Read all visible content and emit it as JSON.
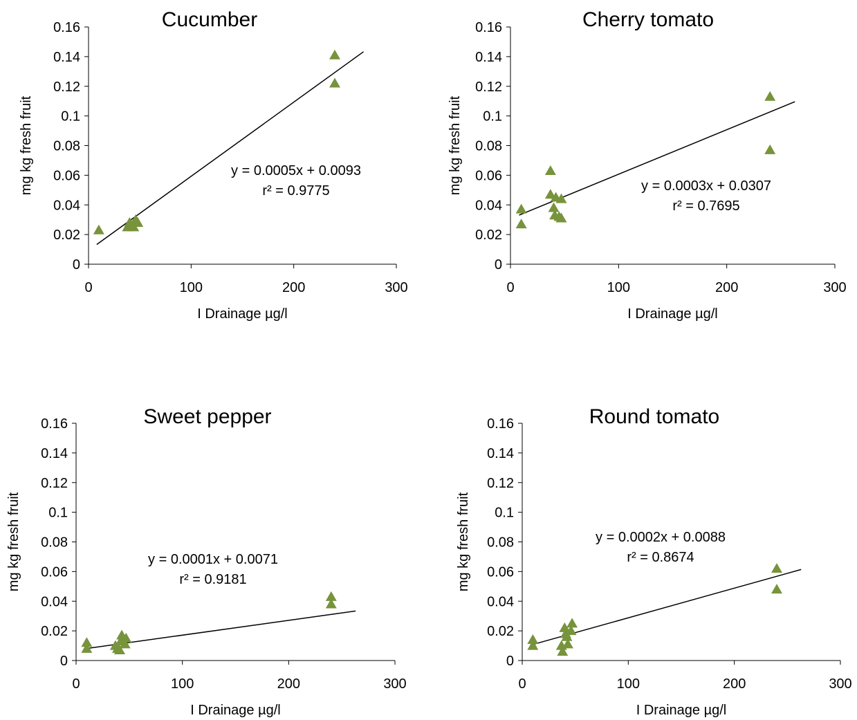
{
  "chart_data": [
    {
      "type": "scatter",
      "title": "Cucumber",
      "xlabel": "I Drainage µg/l",
      "ylabel": "mg kg fresh fruit",
      "xlim": [
        0,
        300
      ],
      "ylim": [
        0,
        0.16
      ],
      "x_ticks": [
        "0",
        "100",
        "200",
        "300"
      ],
      "y_ticks": [
        "0",
        "0.02",
        "0.04",
        "0.06",
        "0.08",
        "0.1",
        "0.12",
        "0.14",
        "0.16"
      ],
      "grid": false,
      "marker_color": "#77933C",
      "points": [
        {
          "x": 10,
          "y": 0.023
        },
        {
          "x": 38,
          "y": 0.025
        },
        {
          "x": 40,
          "y": 0.028
        },
        {
          "x": 42,
          "y": 0.026
        },
        {
          "x": 44,
          "y": 0.025
        },
        {
          "x": 46,
          "y": 0.03
        },
        {
          "x": 48,
          "y": 0.028
        },
        {
          "x": 240,
          "y": 0.141
        },
        {
          "x": 240,
          "y": 0.122
        }
      ],
      "trendline": {
        "x": [
          8,
          268
        ],
        "y": [
          0.0133,
          0.1433
        ]
      },
      "annotations": [
        "y = 0.0005x + 0.0093",
        "r² = 0.9775"
      ]
    },
    {
      "type": "scatter",
      "title": "Cherry tomato",
      "xlabel": "I Drainage µg/l",
      "ylabel": "mg kg fresh fruit",
      "xlim": [
        0,
        300
      ],
      "ylim": [
        0,
        0.16
      ],
      "x_ticks": [
        "0",
        "100",
        "200",
        "300"
      ],
      "y_ticks": [
        "0",
        "0.02",
        "0.04",
        "0.06",
        "0.08",
        "0.1",
        "0.12",
        "0.14",
        "0.16"
      ],
      "grid": false,
      "marker_color": "#77933C",
      "points": [
        {
          "x": 10,
          "y": 0.037
        },
        {
          "x": 10,
          "y": 0.027
        },
        {
          "x": 37,
          "y": 0.063
        },
        {
          "x": 37,
          "y": 0.047
        },
        {
          "x": 40,
          "y": 0.038
        },
        {
          "x": 41,
          "y": 0.033
        },
        {
          "x": 42,
          "y": 0.045
        },
        {
          "x": 45,
          "y": 0.032
        },
        {
          "x": 47,
          "y": 0.044
        },
        {
          "x": 47,
          "y": 0.031
        },
        {
          "x": 240,
          "y": 0.113
        },
        {
          "x": 240,
          "y": 0.077
        }
      ],
      "trendline": {
        "x": [
          8,
          263
        ],
        "y": [
          0.0331,
          0.1096
        ]
      },
      "annotations": [
        "y = 0.0003x + 0.0307",
        "r² = 0.7695"
      ]
    },
    {
      "type": "scatter",
      "title": "Sweet pepper",
      "xlabel": "I Drainage µg/l",
      "ylabel": "mg kg fresh fruit",
      "xlim": [
        0,
        300
      ],
      "ylim": [
        0,
        0.16
      ],
      "x_ticks": [
        "0",
        "100",
        "200",
        "300"
      ],
      "y_ticks": [
        "0",
        "0.02",
        "0.04",
        "0.06",
        "0.08",
        "0.1",
        "0.12",
        "0.14",
        "0.16"
      ],
      "grid": false,
      "marker_color": "#77933C",
      "points": [
        {
          "x": 10,
          "y": 0.012
        },
        {
          "x": 10,
          "y": 0.008
        },
        {
          "x": 37,
          "y": 0.01
        },
        {
          "x": 39,
          "y": 0.008
        },
        {
          "x": 41,
          "y": 0.007
        },
        {
          "x": 42,
          "y": 0.013
        },
        {
          "x": 43,
          "y": 0.017
        },
        {
          "x": 46,
          "y": 0.011
        },
        {
          "x": 47,
          "y": 0.015
        },
        {
          "x": 240,
          "y": 0.043
        },
        {
          "x": 240,
          "y": 0.038
        }
      ],
      "trendline": {
        "x": [
          8,
          263
        ],
        "y": [
          0.0079,
          0.0334
        ]
      },
      "annotations": [
        "y = 0.0001x + 0.0071",
        "r² = 0.9181"
      ]
    },
    {
      "type": "scatter",
      "title": "Round tomato",
      "xlabel": "I Drainage µg/l",
      "ylabel": "mg kg fresh fruit",
      "xlim": [
        0,
        300
      ],
      "ylim": [
        0,
        0.16
      ],
      "x_ticks": [
        "0",
        "100",
        "200",
        "300"
      ],
      "y_ticks": [
        "0",
        "0.02",
        "0.04",
        "0.06",
        "0.08",
        "0.1",
        "0.12",
        "0.14",
        "0.16"
      ],
      "grid": false,
      "marker_color": "#77933C",
      "points": [
        {
          "x": 10,
          "y": 0.014
        },
        {
          "x": 10,
          "y": 0.01
        },
        {
          "x": 37,
          "y": 0.01
        },
        {
          "x": 38,
          "y": 0.006
        },
        {
          "x": 40,
          "y": 0.022
        },
        {
          "x": 41,
          "y": 0.018
        },
        {
          "x": 42,
          "y": 0.016
        },
        {
          "x": 43,
          "y": 0.011
        },
        {
          "x": 46,
          "y": 0.02
        },
        {
          "x": 47,
          "y": 0.025
        },
        {
          "x": 240,
          "y": 0.062
        },
        {
          "x": 240,
          "y": 0.048
        }
      ],
      "trendline": {
        "x": [
          8,
          263
        ],
        "y": [
          0.0104,
          0.0614
        ]
      },
      "annotations": [
        "y = 0.0002x + 0.0088",
        "r² = 0.8674"
      ]
    }
  ]
}
